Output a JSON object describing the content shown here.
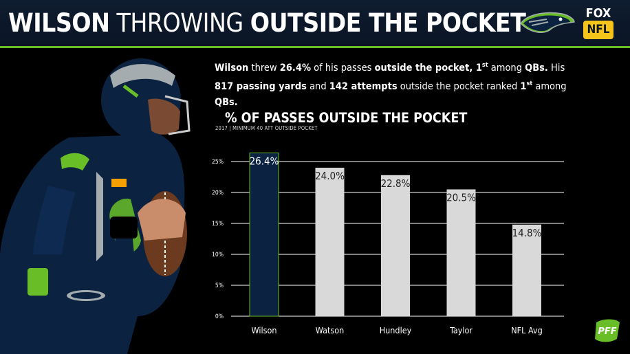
{
  "header": {
    "title_part1": "WILSON",
    "title_part2": "THROWING",
    "title_part3": "OUTSIDE THE POCKET",
    "fox_logo_top": "FOX",
    "fox_logo_bottom": "NFL"
  },
  "summary": {
    "s1": "Wilson",
    "s2": " threw ",
    "s3": "26.4%",
    "s4": " of his passes ",
    "s5": "outside the pocket, 1",
    "s6": "st",
    "s7": " among ",
    "s8": "QBs.",
    "s9": " His ",
    "s10": "817 passing yards",
    "s11": " and ",
    "s12": "142 attempts",
    "s13": " outside the pocket ranked ",
    "s14": "1",
    "s15": "st",
    "s16": " among ",
    "s17": "QBs."
  },
  "colors": {
    "accent_green": "#69be28",
    "navy": "#0b2240",
    "bar_gray": "#d9d9d9",
    "header_bg": "#0f1d30"
  },
  "chart_data": {
    "type": "bar",
    "title": "% OF PASSES OUTSIDE THE POCKET",
    "subtitle": "2017 | MINIMUM 40 ATT OUTSIDE POCKET",
    "categories": [
      "Wilson",
      "Watson",
      "Hundley",
      "Taylor",
      "NFL Avg"
    ],
    "values": [
      26.4,
      24.0,
      22.8,
      20.5,
      14.8
    ],
    "value_labels": [
      "26.4%",
      "24.0%",
      "22.8%",
      "20.5%",
      "14.8%"
    ],
    "highlight": "Wilson",
    "ylim": [
      0,
      25
    ],
    "yticks": [
      0,
      5,
      10,
      15,
      20,
      25
    ],
    "ytick_labels": [
      "0%",
      "5%",
      "10%",
      "15%",
      "20%",
      "25%"
    ],
    "grid": true,
    "xlabel": "",
    "ylabel": ""
  }
}
